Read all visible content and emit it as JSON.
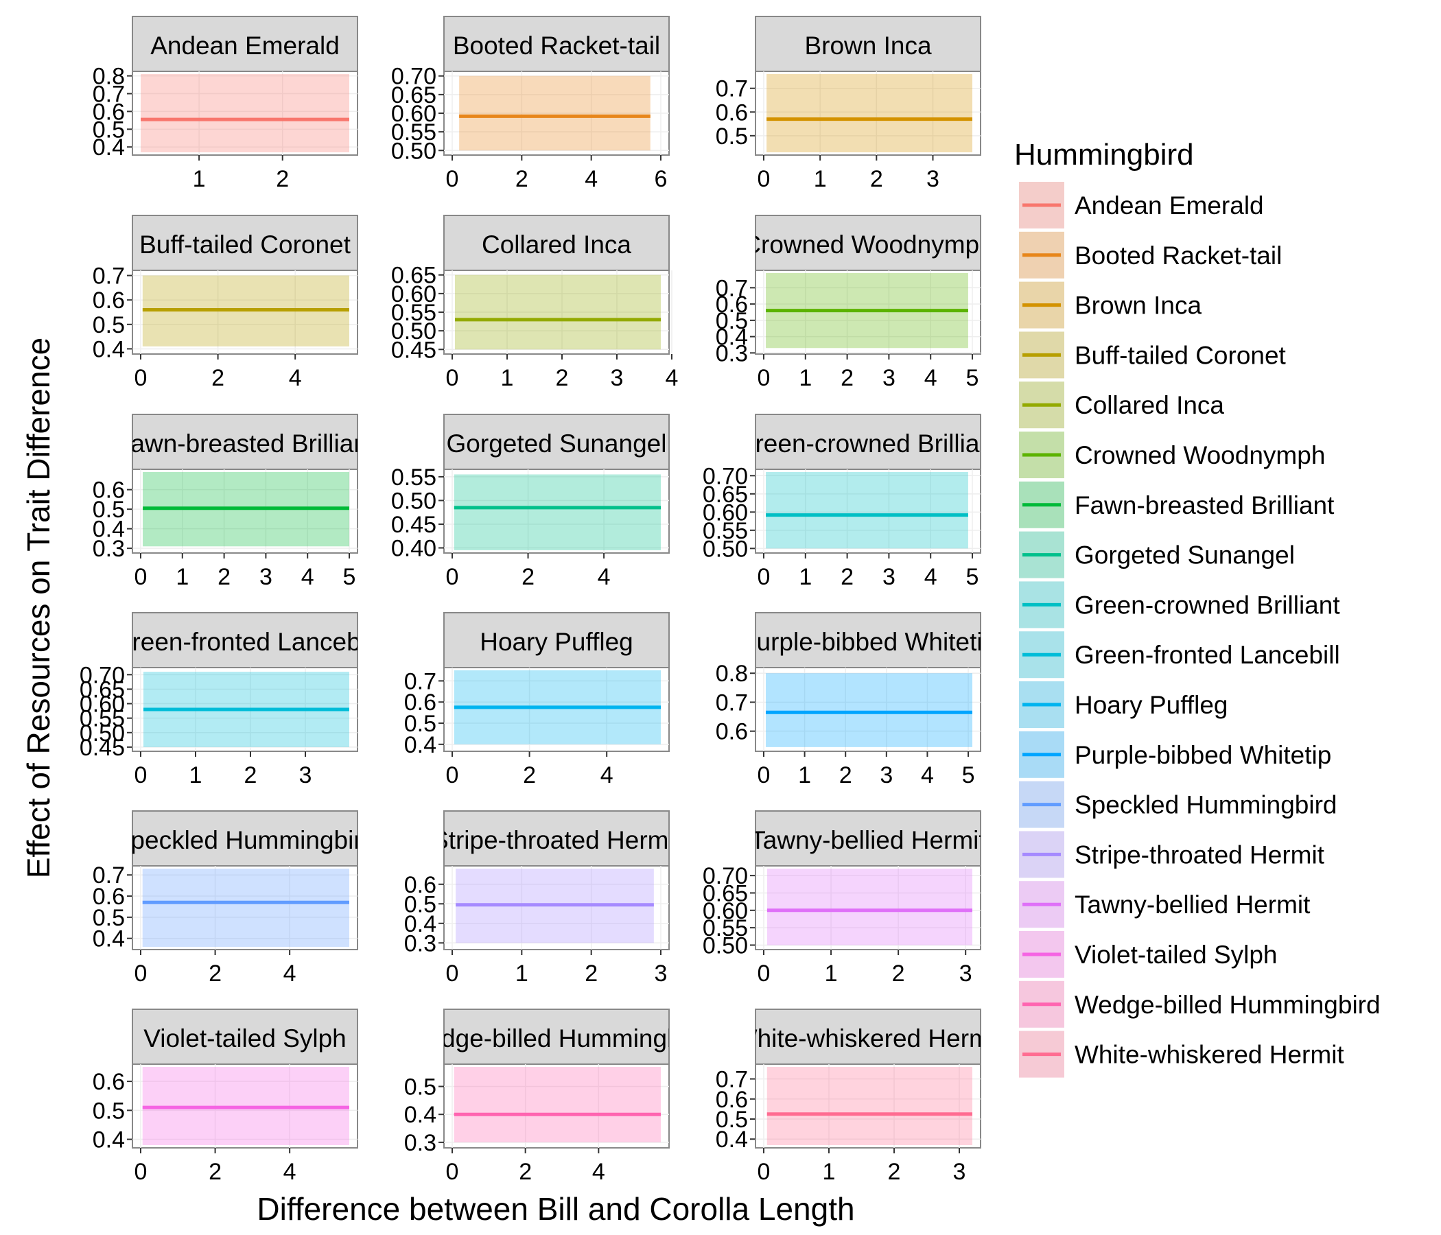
{
  "xlabel": "Difference between Bill and Corolla Length",
  "ylabel": "Effect of Resources on Trait Difference",
  "legend_title": "Hummingbird",
  "legend_placement": "right",
  "chart_data": {
    "type": "line",
    "facet": "wrap",
    "facet_columns": 3,
    "xlabel": "Difference between Bill and Corolla Length",
    "ylabel": "Effect of Resources on Trait Difference",
    "grid": true,
    "legend_title": "Hummingbird",
    "panels": [
      {
        "title": "Andean Emerald",
        "color": "#F8766D",
        "x": [
          0.3,
          2.8
        ],
        "fit": [
          0.555,
          0.555
        ],
        "band": [
          0.37,
          0.81
        ],
        "ylim": [
          0.37,
          0.81
        ],
        "yticks": [
          "0.4",
          "0.5",
          "0.6",
          "0.7",
          "0.8"
        ],
        "xlim": [
          0.3,
          2.8
        ],
        "xticks": [
          "1",
          "2"
        ]
      },
      {
        "title": "Booted Racket-tail",
        "color": "#E7861B",
        "x": [
          0.2,
          5.7
        ],
        "fit": [
          0.592,
          0.592
        ],
        "band": [
          0.5,
          0.7
        ],
        "ylim": [
          0.495,
          0.705
        ],
        "yticks": [
          "0.50",
          "0.55",
          "0.60",
          "0.65",
          "0.70"
        ],
        "xlim": [
          0,
          6
        ],
        "xticks": [
          "0",
          "2",
          "4",
          "6"
        ]
      },
      {
        "title": "Brown Inca",
        "color": "#D39200",
        "x": [
          0.05,
          3.7
        ],
        "fit": [
          0.57,
          0.57
        ],
        "band": [
          0.43,
          0.76
        ],
        "ylim": [
          0.43,
          0.76
        ],
        "yticks": [
          "0.5",
          "0.6",
          "0.7"
        ],
        "xlim": [
          0,
          3.7
        ],
        "xticks": [
          "0",
          "1",
          "2",
          "3"
        ]
      },
      {
        "title": "Buff-tailed Coronet",
        "color": "#B79F00",
        "x": [
          0.05,
          5.4
        ],
        "fit": [
          0.56,
          0.56
        ],
        "band": [
          0.41,
          0.7
        ],
        "ylim": [
          0.39,
          0.71
        ],
        "yticks": [
          "0.4",
          "0.5",
          "0.6",
          "0.7"
        ],
        "xlim": [
          0,
          5.4
        ],
        "xticks": [
          "0",
          "2",
          "4"
        ]
      },
      {
        "title": "Collared Inca",
        "color": "#93AA00",
        "x": [
          0.05,
          3.8
        ],
        "fit": [
          0.53,
          0.53
        ],
        "band": [
          0.45,
          0.65
        ],
        "ylim": [
          0.445,
          0.655
        ],
        "yticks": [
          "0.45",
          "0.50",
          "0.55",
          "0.60",
          "0.65"
        ],
        "xlim": [
          0,
          3.8
        ],
        "xticks": [
          "0",
          "1",
          "2",
          "3",
          "4"
        ]
      },
      {
        "title": "Crowned Woodnymph",
        "color": "#5BB300",
        "x": [
          0.05,
          4.9
        ],
        "fit": [
          0.56,
          0.56
        ],
        "band": [
          0.33,
          0.79
        ],
        "ylim": [
          0.31,
          0.79
        ],
        "yticks": [
          "0.3",
          "0.4",
          "0.5",
          "0.6",
          "0.7"
        ],
        "xlim": [
          0,
          5
        ],
        "xticks": [
          "0",
          "1",
          "2",
          "3",
          "4",
          "5"
        ]
      },
      {
        "title": "Fawn-breasted Brilliant",
        "color": "#00BA38",
        "x": [
          0.05,
          5.0
        ],
        "fit": [
          0.505,
          0.505
        ],
        "band": [
          0.31,
          0.69
        ],
        "ylim": [
          0.29,
          0.69
        ],
        "yticks": [
          "0.3",
          "0.4",
          "0.5",
          "0.6"
        ],
        "xlim": [
          0,
          5
        ],
        "xticks": [
          "0",
          "1",
          "2",
          "3",
          "4",
          "5"
        ]
      },
      {
        "title": "Gorgeted Sunangel",
        "color": "#00C08B",
        "x": [
          0.05,
          5.5
        ],
        "fit": [
          0.485,
          0.485
        ],
        "band": [
          0.395,
          0.555
        ],
        "ylim": [
          0.395,
          0.56
        ],
        "yticks": [
          "0.40",
          "0.45",
          "0.50",
          "0.55"
        ],
        "xlim": [
          0,
          5.5
        ],
        "xticks": [
          "0",
          "2",
          "4"
        ]
      },
      {
        "title": "Green-crowned Brilliant",
        "color": "#00BFC4",
        "x": [
          0.05,
          4.9
        ],
        "fit": [
          0.592,
          0.592
        ],
        "band": [
          0.5,
          0.71
        ],
        "ylim": [
          0.495,
          0.71
        ],
        "yticks": [
          "0.50",
          "0.55",
          "0.60",
          "0.65",
          "0.70"
        ],
        "xlim": [
          0,
          5
        ],
        "xticks": [
          "0",
          "1",
          "2",
          "3",
          "4",
          "5"
        ]
      },
      {
        "title": "Green-fronted Lancebill",
        "color": "#00BCD8",
        "x": [
          0.05,
          3.8
        ],
        "fit": [
          0.58,
          0.58
        ],
        "band": [
          0.45,
          0.71
        ],
        "ylim": [
          0.445,
          0.715
        ],
        "yticks": [
          "0.45",
          "0.50",
          "0.55",
          "0.60",
          "0.65",
          "0.70"
        ],
        "xlim": [
          0,
          3.8
        ],
        "xticks": [
          "0",
          "1",
          "2",
          "3"
        ]
      },
      {
        "title": "Hoary Puffleg",
        "color": "#00B4EF",
        "x": [
          0.05,
          5.4
        ],
        "fit": [
          0.575,
          0.575
        ],
        "band": [
          0.4,
          0.75
        ],
        "ylim": [
          0.38,
          0.75
        ],
        "yticks": [
          "0.4",
          "0.5",
          "0.6",
          "0.7"
        ],
        "xlim": [
          0,
          5.4
        ],
        "xticks": [
          "0",
          "2",
          "4"
        ]
      },
      {
        "title": "Purple-bibbed Whitetip",
        "color": "#00A5FF",
        "x": [
          0.05,
          5.1
        ],
        "fit": [
          0.665,
          0.665
        ],
        "band": [
          0.545,
          0.8
        ],
        "ylim": [
          0.54,
          0.81
        ],
        "yticks": [
          "0.6",
          "0.7",
          "0.8"
        ],
        "xlim": [
          0,
          5.1
        ],
        "xticks": [
          "0",
          "1",
          "2",
          "3",
          "4",
          "5"
        ]
      },
      {
        "title": "Speckled Hummingbird",
        "color": "#619CFF",
        "x": [
          0.05,
          5.6
        ],
        "fit": [
          0.57,
          0.57
        ],
        "band": [
          0.36,
          0.73
        ],
        "ylim": [
          0.36,
          0.73
        ],
        "yticks": [
          "0.4",
          "0.5",
          "0.6",
          "0.7"
        ],
        "xlim": [
          0,
          5.6
        ],
        "xticks": [
          "0",
          "2",
          "4"
        ]
      },
      {
        "title": "Stripe-throated Hermit",
        "color": "#A58AFF",
        "x": [
          0.05,
          2.9
        ],
        "fit": [
          0.495,
          0.495
        ],
        "band": [
          0.3,
          0.68
        ],
        "ylim": [
          0.28,
          0.68
        ],
        "yticks": [
          "0.3",
          "0.4",
          "0.5",
          "0.6"
        ],
        "xlim": [
          0,
          3
        ],
        "xticks": [
          "0",
          "1",
          "2",
          "3"
        ]
      },
      {
        "title": "Tawny-bellied Hermit",
        "color": "#DF70F8",
        "x": [
          0.05,
          3.1
        ],
        "fit": [
          0.6,
          0.6
        ],
        "band": [
          0.5,
          0.72
        ],
        "ylim": [
          0.495,
          0.72
        ],
        "yticks": [
          "0.50",
          "0.55",
          "0.60",
          "0.65",
          "0.70"
        ],
        "xlim": [
          0,
          3.1
        ],
        "xticks": [
          "0",
          "1",
          "2",
          "3"
        ]
      },
      {
        "title": "Violet-tailed Sylph",
        "color": "#F564E3",
        "x": [
          0.05,
          5.6
        ],
        "fit": [
          0.51,
          0.51
        ],
        "band": [
          0.38,
          0.65
        ],
        "ylim": [
          0.38,
          0.65
        ],
        "yticks": [
          "0.4",
          "0.5",
          "0.6"
        ],
        "xlim": [
          0,
          5.6
        ],
        "xticks": [
          "0",
          "2",
          "4"
        ]
      },
      {
        "title": "Wedge-billed Hummingbird",
        "color": "#FF64B0",
        "x": [
          0.05,
          5.7
        ],
        "fit": [
          0.4,
          0.4
        ],
        "band": [
          0.3,
          0.57
        ],
        "ylim": [
          0.29,
          0.57
        ],
        "yticks": [
          "0.3",
          "0.4",
          "0.5"
        ],
        "xlim": [
          0,
          5.7
        ],
        "xticks": [
          "0",
          "2",
          "4"
        ]
      },
      {
        "title": "White-whiskered Hermit",
        "color": "#FF6C91",
        "x": [
          0.05,
          3.2
        ],
        "fit": [
          0.525,
          0.525
        ],
        "band": [
          0.37,
          0.76
        ],
        "ylim": [
          0.37,
          0.76
        ],
        "yticks": [
          "0.4",
          "0.5",
          "0.6",
          "0.7"
        ],
        "xlim": [
          0,
          3.2
        ],
        "xticks": [
          "0",
          "1",
          "2",
          "3"
        ]
      }
    ]
  }
}
